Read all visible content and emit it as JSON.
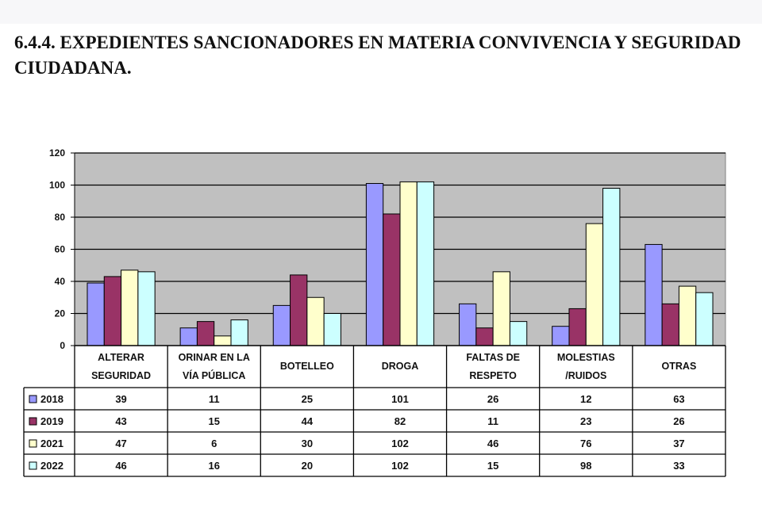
{
  "heading": "6.4.4. EXPEDIENTES SANCIONADORES EN MATERIA CONVIVENCIA Y SEGURIDAD CIUDADANA.",
  "chart_data": {
    "type": "bar",
    "categories": [
      [
        "ALTERAR",
        "SEGURIDAD"
      ],
      [
        "ORINAR EN LA",
        "VÍA PÚBLICA"
      ],
      [
        "BOTELLEO"
      ],
      [
        "DROGA"
      ],
      [
        "FALTAS DE",
        "RESPETO"
      ],
      [
        "MOLESTIAS",
        "/RUIDOS"
      ],
      [
        "OTRAS"
      ]
    ],
    "series": [
      {
        "name": "2018",
        "color": "#9999ff",
        "values": [
          39,
          11,
          25,
          101,
          26,
          12,
          63
        ]
      },
      {
        "name": "2019",
        "color": "#993366",
        "values": [
          43,
          15,
          44,
          82,
          11,
          23,
          26
        ]
      },
      {
        "name": "2021",
        "color": "#ffffcc",
        "values": [
          47,
          6,
          30,
          102,
          46,
          76,
          37
        ]
      },
      {
        "name": "2022",
        "color": "#ccffff",
        "values": [
          46,
          16,
          20,
          102,
          15,
          98,
          33
        ]
      }
    ],
    "ylim": [
      0,
      120
    ],
    "yticks": [
      0,
      20,
      40,
      60,
      80,
      100,
      120
    ],
    "grid": true,
    "plot_background": "#c0c0c0",
    "legend": "data-table-left"
  }
}
